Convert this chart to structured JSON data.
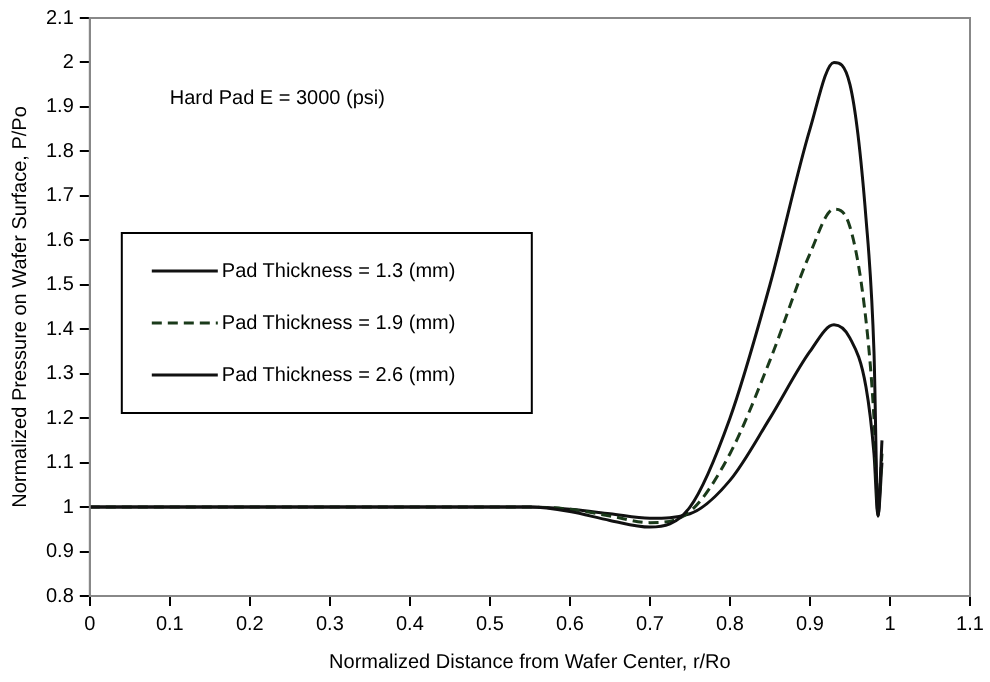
{
  "chart_data": {
    "type": "line",
    "xlabel": "Normalized Distance from Wafer Center, r/Ro",
    "ylabel": "Normalized Pressure on Wafer Surface, P/Po",
    "annotations": [
      "Hard Pad E = 3000 (psi)"
    ],
    "x": [
      0,
      0.1,
      0.2,
      0.3,
      0.4,
      0.5,
      0.55,
      0.6,
      0.65,
      0.7,
      0.75,
      0.8,
      0.85,
      0.9,
      0.93,
      0.95,
      0.97,
      0.98,
      0.985,
      0.99
    ],
    "series": [
      {
        "name": "Pad Thickness = 1.3 (mm)",
        "color": "#111111",
        "line_style": "solid",
        "values": [
          1,
          1,
          1,
          1,
          1,
          1,
          1,
          0.99,
          0.97,
          0.955,
          1,
          1.2,
          1.5,
          1.85,
          2,
          1.95,
          1.65,
          1.35,
          0.98,
          1.15
        ]
      },
      {
        "name": "Pad Thickness = 1.9 (mm)",
        "color": "#1a3a1a",
        "line_style": "dashed",
        "values": [
          1,
          1,
          1,
          1,
          1,
          1,
          1,
          0.995,
          0.98,
          0.965,
          0.99,
          1.12,
          1.33,
          1.57,
          1.67,
          1.63,
          1.42,
          1.2,
          1,
          1.12
        ]
      },
      {
        "name": "Pad Thickness = 2.6 (mm)",
        "color": "#111111",
        "line_style": "solid",
        "values": [
          1,
          1,
          1,
          1,
          1,
          1,
          1,
          0.995,
          0.985,
          0.975,
          0.985,
          1.06,
          1.2,
          1.35,
          1.41,
          1.38,
          1.27,
          1.12,
          0.98,
          1.1
        ]
      }
    ],
    "xlim": [
      0,
      1.1
    ],
    "xticks": [
      0,
      0.1,
      0.2,
      0.3,
      0.4,
      0.5,
      0.6,
      0.7,
      0.8,
      0.9,
      1,
      1.1
    ],
    "ylim": [
      0.8,
      2.1
    ],
    "yticks": [
      0.8,
      0.9,
      1,
      1.1,
      1.2,
      1.3,
      1.4,
      1.5,
      1.6,
      1.7,
      1.8,
      1.9,
      2,
      2.1
    ],
    "grid": false,
    "legend": "center left",
    "marker": "none"
  }
}
